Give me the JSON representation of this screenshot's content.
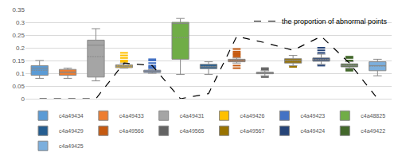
{
  "chart_data": {
    "type": "box",
    "ylim": [
      0,
      0.35
    ],
    "yticks": [
      0,
      0.05,
      0.1,
      0.15,
      0.2,
      0.25,
      0.3,
      0.35
    ],
    "grid": true,
    "tick_labels": "y",
    "legend": "bottom",
    "series": [
      {
        "name": "c4a49434",
        "color": "#5b9bd5",
        "lowerfence": 0.08,
        "q1": 0.092,
        "median": 0.12,
        "q3": 0.13,
        "upperfence": 0.15,
        "mean": 0.112,
        "outliers": []
      },
      {
        "name": "c4a49433",
        "color": "#ed7d31",
        "lowerfence": 0.08,
        "q1": 0.092,
        "median": 0.103,
        "q3": 0.115,
        "upperfence": 0.12,
        "mean": 0.105,
        "outliers": []
      },
      {
        "name": "c4a49431",
        "color": "#a5a5a5",
        "lowerfence": 0.07,
        "q1": 0.085,
        "median": 0.21,
        "q3": 0.23,
        "upperfence": 0.275,
        "mean": 0.165,
        "outliers": []
      },
      {
        "name": "c4a49426",
        "color": "#ffc000",
        "lowerfence": 0.12,
        "q1": 0.122,
        "median": 0.127,
        "q3": 0.133,
        "upperfence": 0.14,
        "mean": 0.13,
        "outliers": [
          0.145,
          0.15,
          0.16,
          0.17,
          0.18
        ]
      },
      {
        "name": "c4a49423",
        "color": "#4472c4",
        "lowerfence": 0.1,
        "q1": 0.103,
        "median": 0.107,
        "q3": 0.112,
        "upperfence": 0.115,
        "mean": 0.108,
        "outliers": [
          0.12,
          0.125,
          0.13,
          0.14,
          0.15,
          0.155
        ]
      },
      {
        "name": "c4a48825",
        "color": "#70ad47",
        "lowerfence": 0.095,
        "q1": 0.155,
        "median": 0.295,
        "q3": 0.3,
        "upperfence": 0.315,
        "mean": 0.24,
        "outliers": []
      },
      {
        "name": "c4a49429",
        "color": "#255e91",
        "lowerfence": 0.095,
        "q1": 0.118,
        "median": 0.125,
        "q3": 0.135,
        "upperfence": 0.145,
        "mean": 0.127,
        "outliers": []
      },
      {
        "name": "c4a49566",
        "color": "#c55a11",
        "lowerfence": 0.14,
        "q1": 0.145,
        "median": 0.15,
        "q3": 0.155,
        "upperfence": 0.16,
        "mean": 0.151,
        "outliers": [
          0.12,
          0.13,
          0.165,
          0.17,
          0.175,
          0.18,
          0.185,
          0.195
        ]
      },
      {
        "name": "c4a49565",
        "color": "#636363",
        "lowerfence": 0.09,
        "q1": 0.098,
        "median": 0.1,
        "q3": 0.104,
        "upperfence": 0.11,
        "mean": 0.101,
        "outliers": [
          0.085,
          0.115,
          0.12
        ]
      },
      {
        "name": "c4a49567",
        "color": "#997300",
        "lowerfence": 0.13,
        "q1": 0.14,
        "median": 0.15,
        "q3": 0.157,
        "upperfence": 0.17,
        "mean": 0.149,
        "outliers": [
          0.125
        ]
      },
      {
        "name": "c4a49424",
        "color": "#264478",
        "lowerfence": 0.135,
        "q1": 0.147,
        "median": 0.153,
        "q3": 0.16,
        "upperfence": 0.175,
        "mean": 0.154,
        "outliers": [
          0.13,
          0.18,
          0.19,
          0.2
        ]
      },
      {
        "name": "c4a49422",
        "color": "#43682b",
        "lowerfence": 0.12,
        "q1": 0.125,
        "median": 0.13,
        "q3": 0.137,
        "upperfence": 0.145,
        "mean": 0.131,
        "outliers": [
          0.11,
          0.115,
          0.15,
          0.16,
          0.165
        ]
      },
      {
        "name": "c4a49425",
        "color": "#7cafdd",
        "lowerfence": 0.09,
        "q1": 0.11,
        "median": 0.13,
        "q3": 0.145,
        "upperfence": 0.155,
        "mean": 0.128,
        "outliers": []
      }
    ],
    "line_series": {
      "name": "the proportion of abnormal points",
      "type": "line",
      "color": "#000000",
      "line_style": "dash",
      "values": [
        0,
        0,
        0,
        0.14,
        0.13,
        0,
        0.02,
        0.245,
        0.22,
        0.19,
        0.245,
        0.14,
        0
      ]
    }
  }
}
